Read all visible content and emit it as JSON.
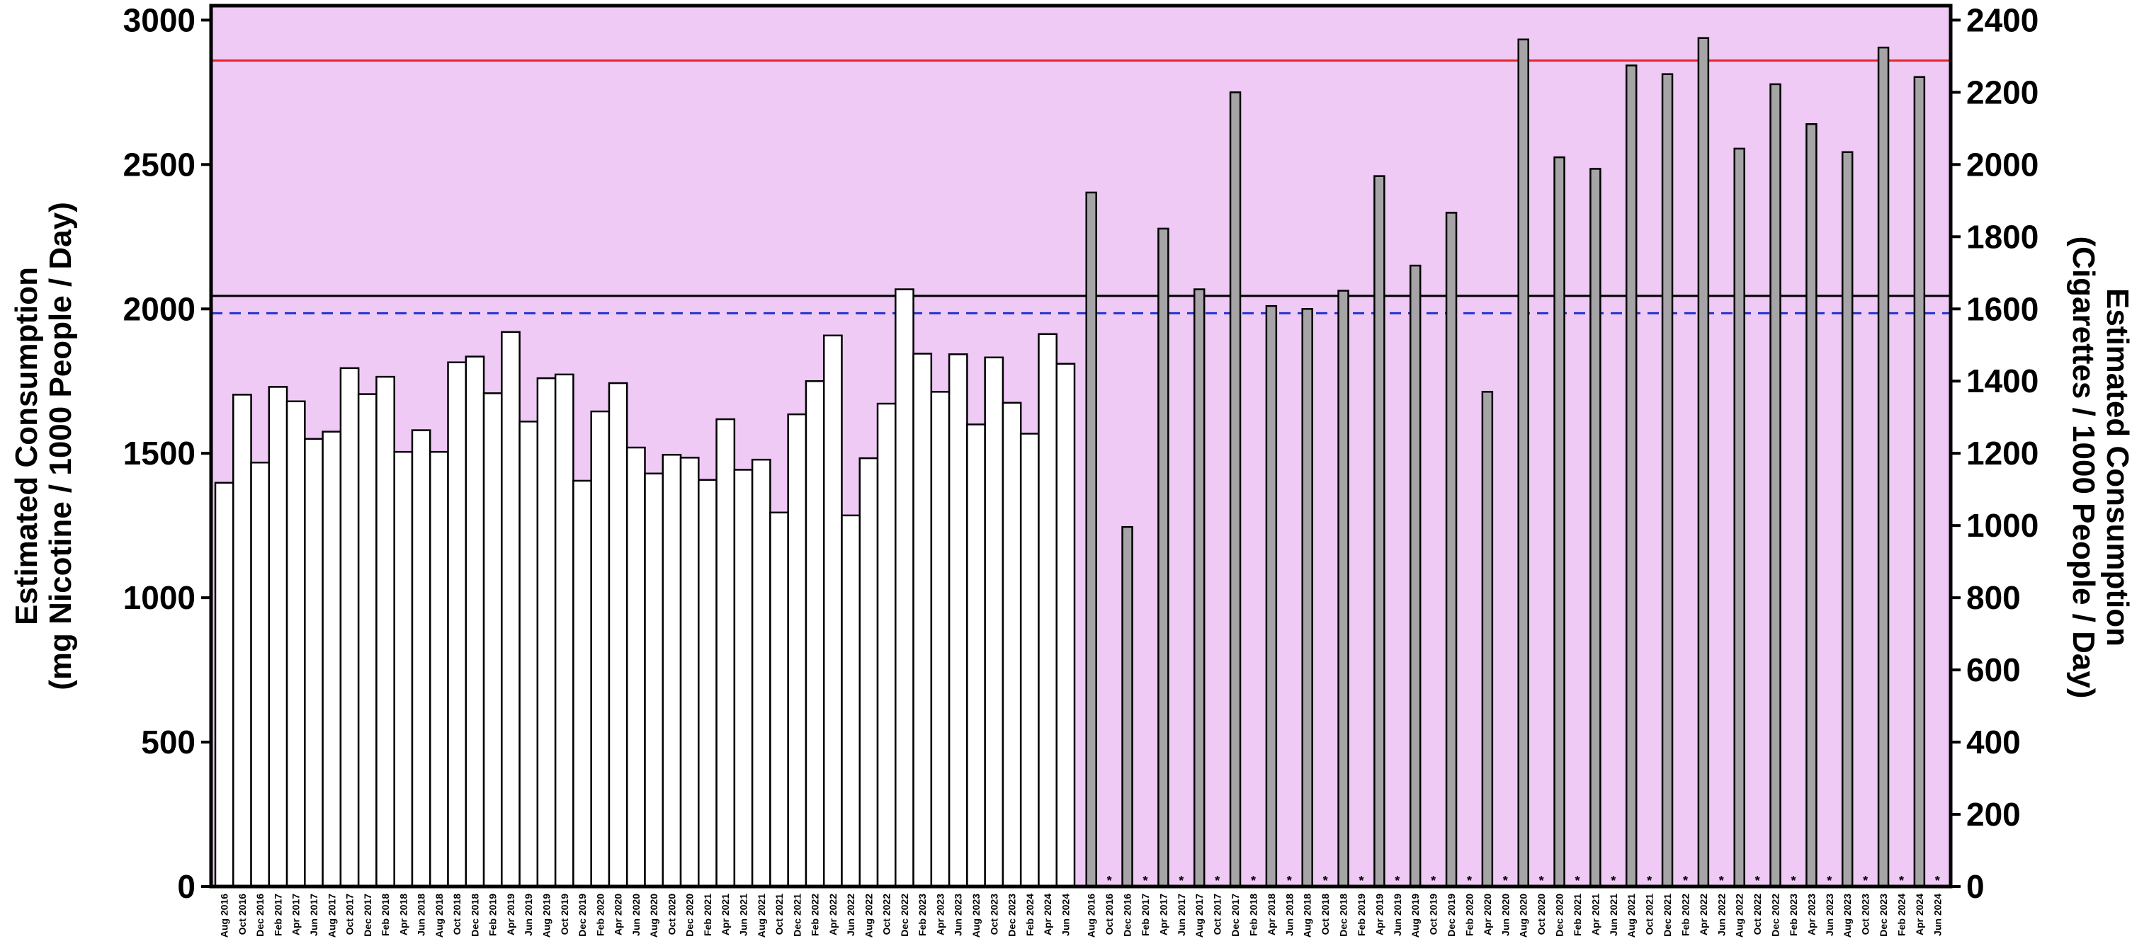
{
  "chart_data": {
    "type": "bar",
    "background_color": "#efcaf5",
    "y_left": {
      "label_line1": "Estimated Consumption",
      "label_line2": "(mg Nicotine / 1000 People / Day)",
      "lim": [
        0,
        3050
      ],
      "ticks": [
        0,
        500,
        1000,
        1500,
        2000,
        2500,
        3000
      ]
    },
    "y_right": {
      "label_line1": "Estimated Consumption",
      "label_line2": "(Cigarettes / 1000 People / Day)",
      "lim": [
        0,
        2440
      ],
      "ticks": [
        0,
        200,
        400,
        600,
        800,
        1000,
        1200,
        1400,
        1600,
        1800,
        2000,
        2200,
        2400
      ]
    },
    "reference_lines": [
      {
        "value": 2860,
        "color": "#e8242a",
        "style": "solid"
      },
      {
        "value": 2045,
        "color": "#000000",
        "style": "solid"
      },
      {
        "value": 1985,
        "color": "#2233cc",
        "style": "dashed"
      }
    ],
    "series": [
      {
        "fill": "#ffffff",
        "categories": [
          "Aug 2016",
          "Oct 2016",
          "Dec 2016",
          "Feb 2017",
          "Apr 2017",
          "Jun 2017",
          "Aug 2017",
          "Oct 2017",
          "Dec 2017",
          "Feb 2018",
          "Apr 2018",
          "Jun 2018",
          "Aug 2018",
          "Oct 2018",
          "Dec 2018",
          "Feb 2019",
          "Apr 2019",
          "Jun 2019",
          "Aug 2019",
          "Oct 2019",
          "Dec 2019",
          "Feb 2020",
          "Apr 2020",
          "Jun 2020",
          "Aug 2020",
          "Oct 2020",
          "Dec 2020",
          "Feb 2021",
          "Apr 2021",
          "Jun 2021",
          "Aug 2021",
          "Oct 2021",
          "Dec 2021",
          "Feb 2022",
          "Apr 2022",
          "Jun 2022",
          "Aug 2022",
          "Oct 2022",
          "Dec 2022",
          "Feb 2023",
          "Apr 2023",
          "Jun 2023",
          "Aug 2023",
          "Oct 2023",
          "Dec 2023",
          "Feb 2024",
          "Apr 2024",
          "Jun 2024"
        ],
        "values": [
          1398,
          1703,
          1468,
          1730,
          1680,
          1550,
          1575,
          1795,
          1705,
          1765,
          1505,
          1580,
          1505,
          1815,
          1835,
          1708,
          1920,
          1610,
          1760,
          1773,
          1405,
          1645,
          1743,
          1520,
          1430,
          1495,
          1485,
          1408,
          1618,
          1443,
          1478,
          1295,
          1635,
          1750,
          1908,
          1285,
          1483,
          1672,
          2068,
          1845,
          1713,
          1843,
          1600,
          1832,
          1675,
          1568,
          1913,
          1810
        ],
        "markers": []
      },
      {
        "fill": "#a6a4a6",
        "categories": [
          "Aug 2016",
          "Oct 2016",
          "Dec 2016",
          "Feb 2017",
          "Apr 2017",
          "Jun 2017",
          "Aug 2017",
          "Oct 2017",
          "Dec 2017",
          "Feb 2018",
          "Apr 2018",
          "Jun 2018",
          "Aug 2018",
          "Oct 2018",
          "Dec 2018",
          "Feb 2019",
          "Apr 2019",
          "Jun 2019",
          "Aug 2019",
          "Oct 2019",
          "Dec 2019",
          "Feb 2020",
          "Apr 2020",
          "Jun 2020",
          "Aug 2020",
          "Oct 2020",
          "Dec 2020",
          "Feb 2021",
          "Apr 2021",
          "Jun 2021",
          "Aug 2021",
          "Oct 2021",
          "Dec 2021",
          "Feb 2022",
          "Apr 2022",
          "Jun 2022",
          "Aug 2022",
          "Oct 2022",
          "Dec 2022",
          "Feb 2023",
          "Apr 2023",
          "Jun 2023",
          "Aug 2023",
          "Oct 2023",
          "Dec 2023",
          "Feb 2024",
          "Apr 2024",
          "Jun 2024"
        ],
        "values": [
          2403,
          null,
          1245,
          null,
          2278,
          null,
          2068,
          null,
          2750,
          null,
          2010,
          null,
          2000,
          null,
          2063,
          null,
          2460,
          null,
          2150,
          null,
          2333,
          null,
          1713,
          null,
          2933,
          null,
          2525,
          null,
          2485,
          null,
          2843,
          null,
          2813,
          null,
          2938,
          null,
          2555,
          null,
          2778,
          null,
          2640,
          null,
          2543,
          null,
          2905,
          null,
          2803,
          null
        ],
        "markers": [
          "*",
          "*",
          "*",
          "*",
          "*",
          "*",
          "*",
          "*",
          "*",
          "*",
          "*",
          "*",
          "*",
          "*",
          "*",
          "*",
          "*",
          "*",
          "*",
          "*",
          "*",
          "*",
          "*",
          "*"
        ]
      }
    ]
  }
}
